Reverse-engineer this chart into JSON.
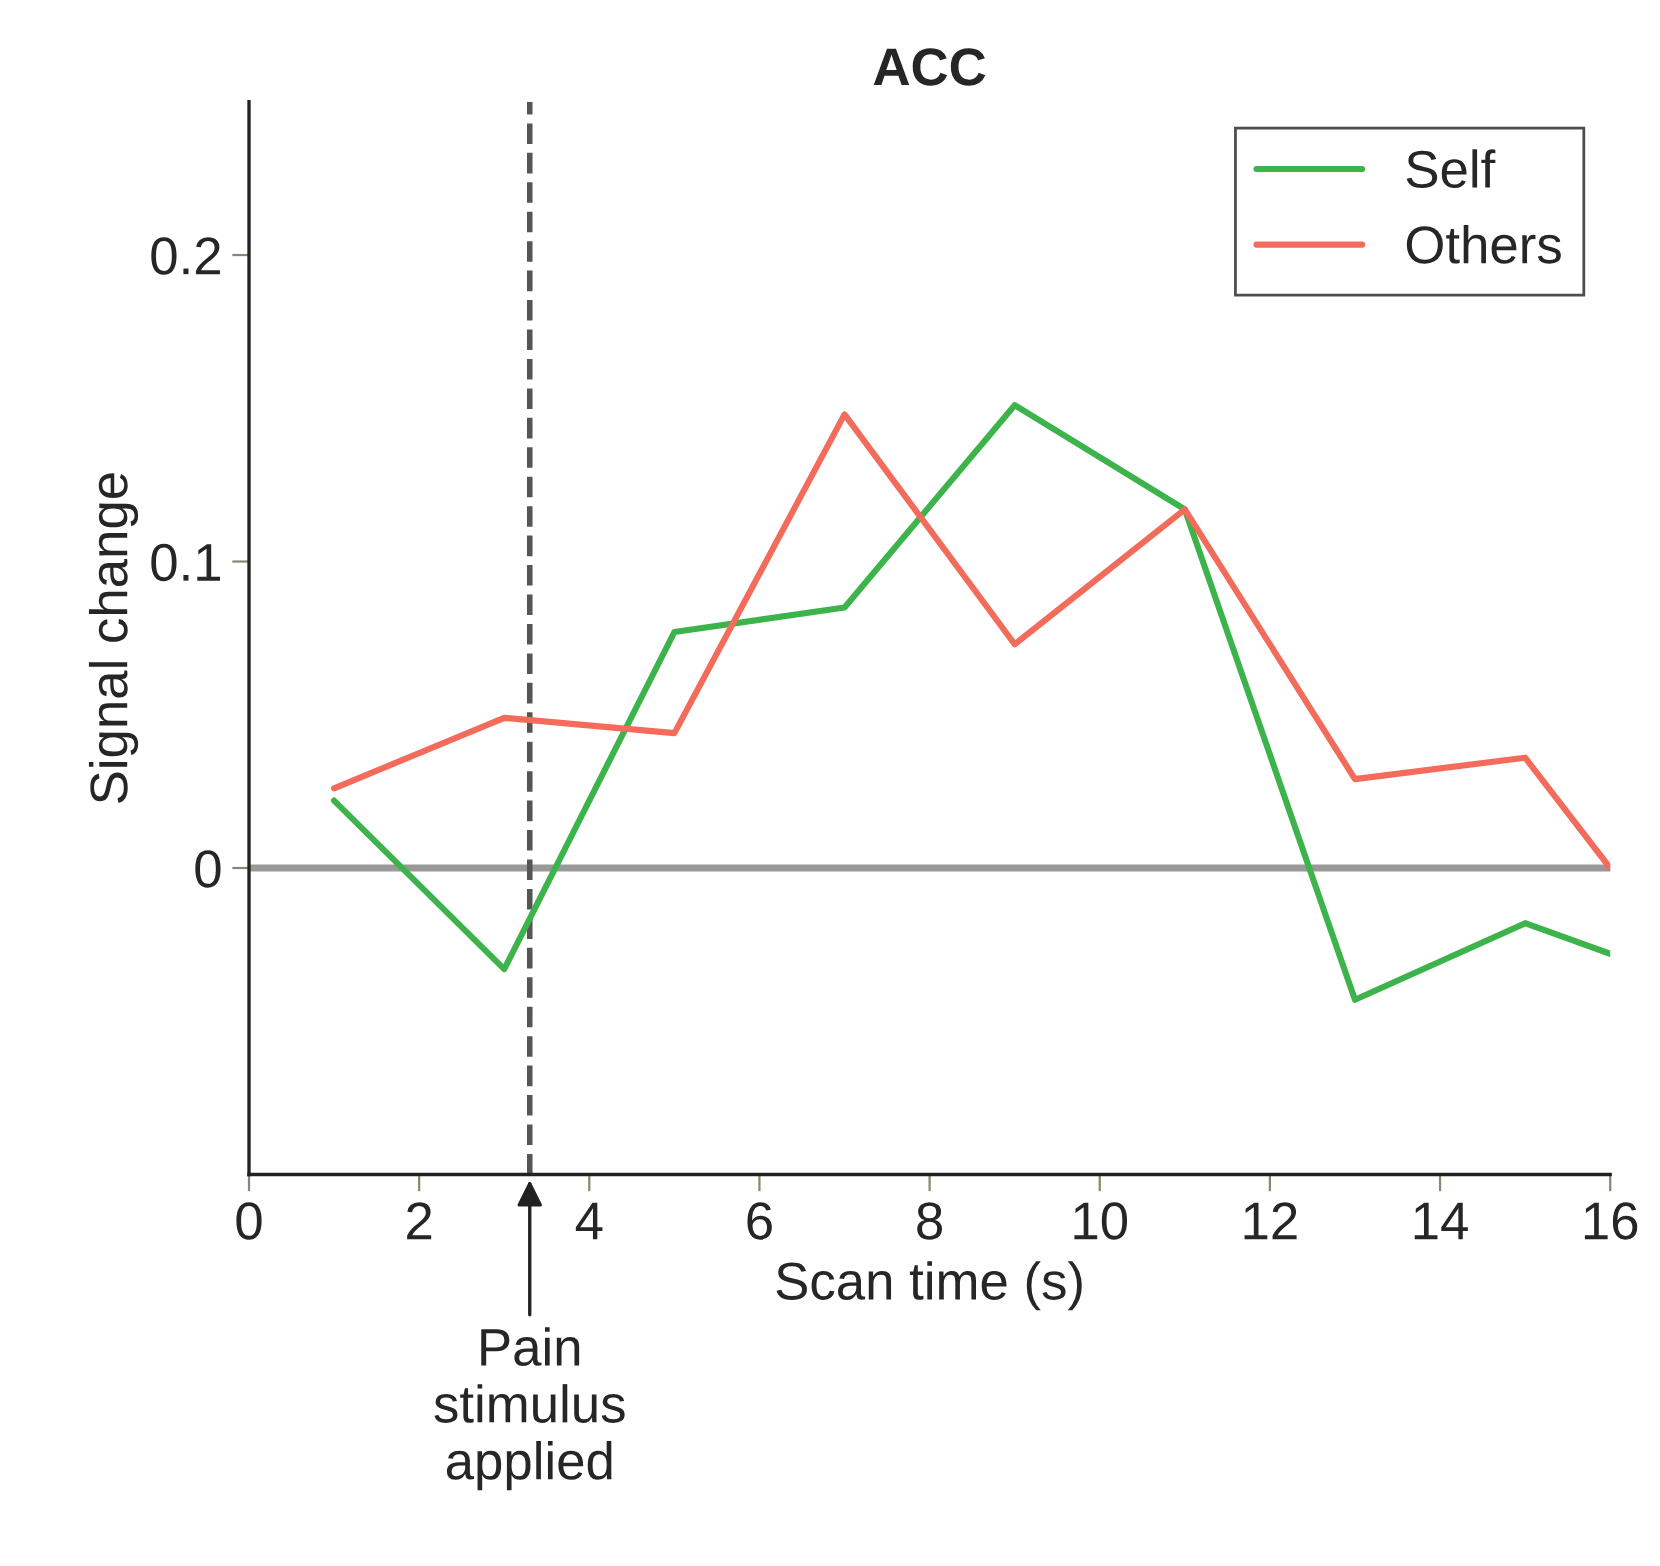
{
  "chart_data": {
    "type": "line",
    "title": "ACC",
    "xlabel": "Scan time (s)",
    "ylabel": "Signal change",
    "x": [
      1,
      3,
      5,
      7,
      9,
      11,
      13,
      15,
      16
    ],
    "series": [
      {
        "name": "Self",
        "color": "#3cb44b",
        "values": [
          0.022,
          -0.033,
          0.077,
          0.085,
          0.151,
          0.117,
          -0.043,
          -0.018,
          -0.028
        ]
      },
      {
        "name": "Others",
        "color": "#f26b5b",
        "values": [
          0.026,
          0.049,
          0.044,
          0.148,
          0.073,
          0.117,
          0.029,
          0.036,
          0.0
        ]
      }
    ],
    "xlim": [
      0,
      16
    ],
    "xticks": [
      0,
      2,
      4,
      6,
      8,
      10,
      12,
      14,
      16
    ],
    "ylim": [
      -0.1,
      0.25
    ],
    "yticks": [
      0,
      0.1,
      0.2
    ],
    "ref_lines": [
      {
        "axis": "y",
        "value": 0,
        "color": "#999999",
        "line_style": "solid"
      },
      {
        "axis": "x",
        "value": 3.3,
        "color": "#555555",
        "line_style": "dashed",
        "label": "Pain\nstimulus\napplied"
      }
    ],
    "grid": false,
    "legend": "top right",
    "marker": "none",
    "line_style": "solid"
  }
}
